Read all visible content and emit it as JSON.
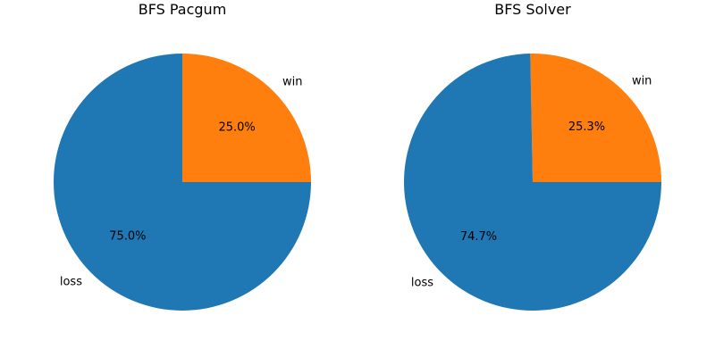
{
  "chart_data": [
    {
      "type": "pie",
      "title": "BFS Pacgum",
      "slices": [
        {
          "label": "win",
          "value": 25.0,
          "pct_label": "25.0%",
          "color": "#ff7f0e"
        },
        {
          "label": "loss",
          "value": 75.0,
          "pct_label": "75.0%",
          "color": "#1f77b4"
        }
      ]
    },
    {
      "type": "pie",
      "title": "BFS Solver",
      "slices": [
        {
          "label": "win",
          "value": 25.3,
          "pct_label": "25.3%",
          "color": "#ff7f0e"
        },
        {
          "label": "loss",
          "value": 74.7,
          "pct_label": "74.7%",
          "color": "#1f77b4"
        }
      ]
    }
  ]
}
